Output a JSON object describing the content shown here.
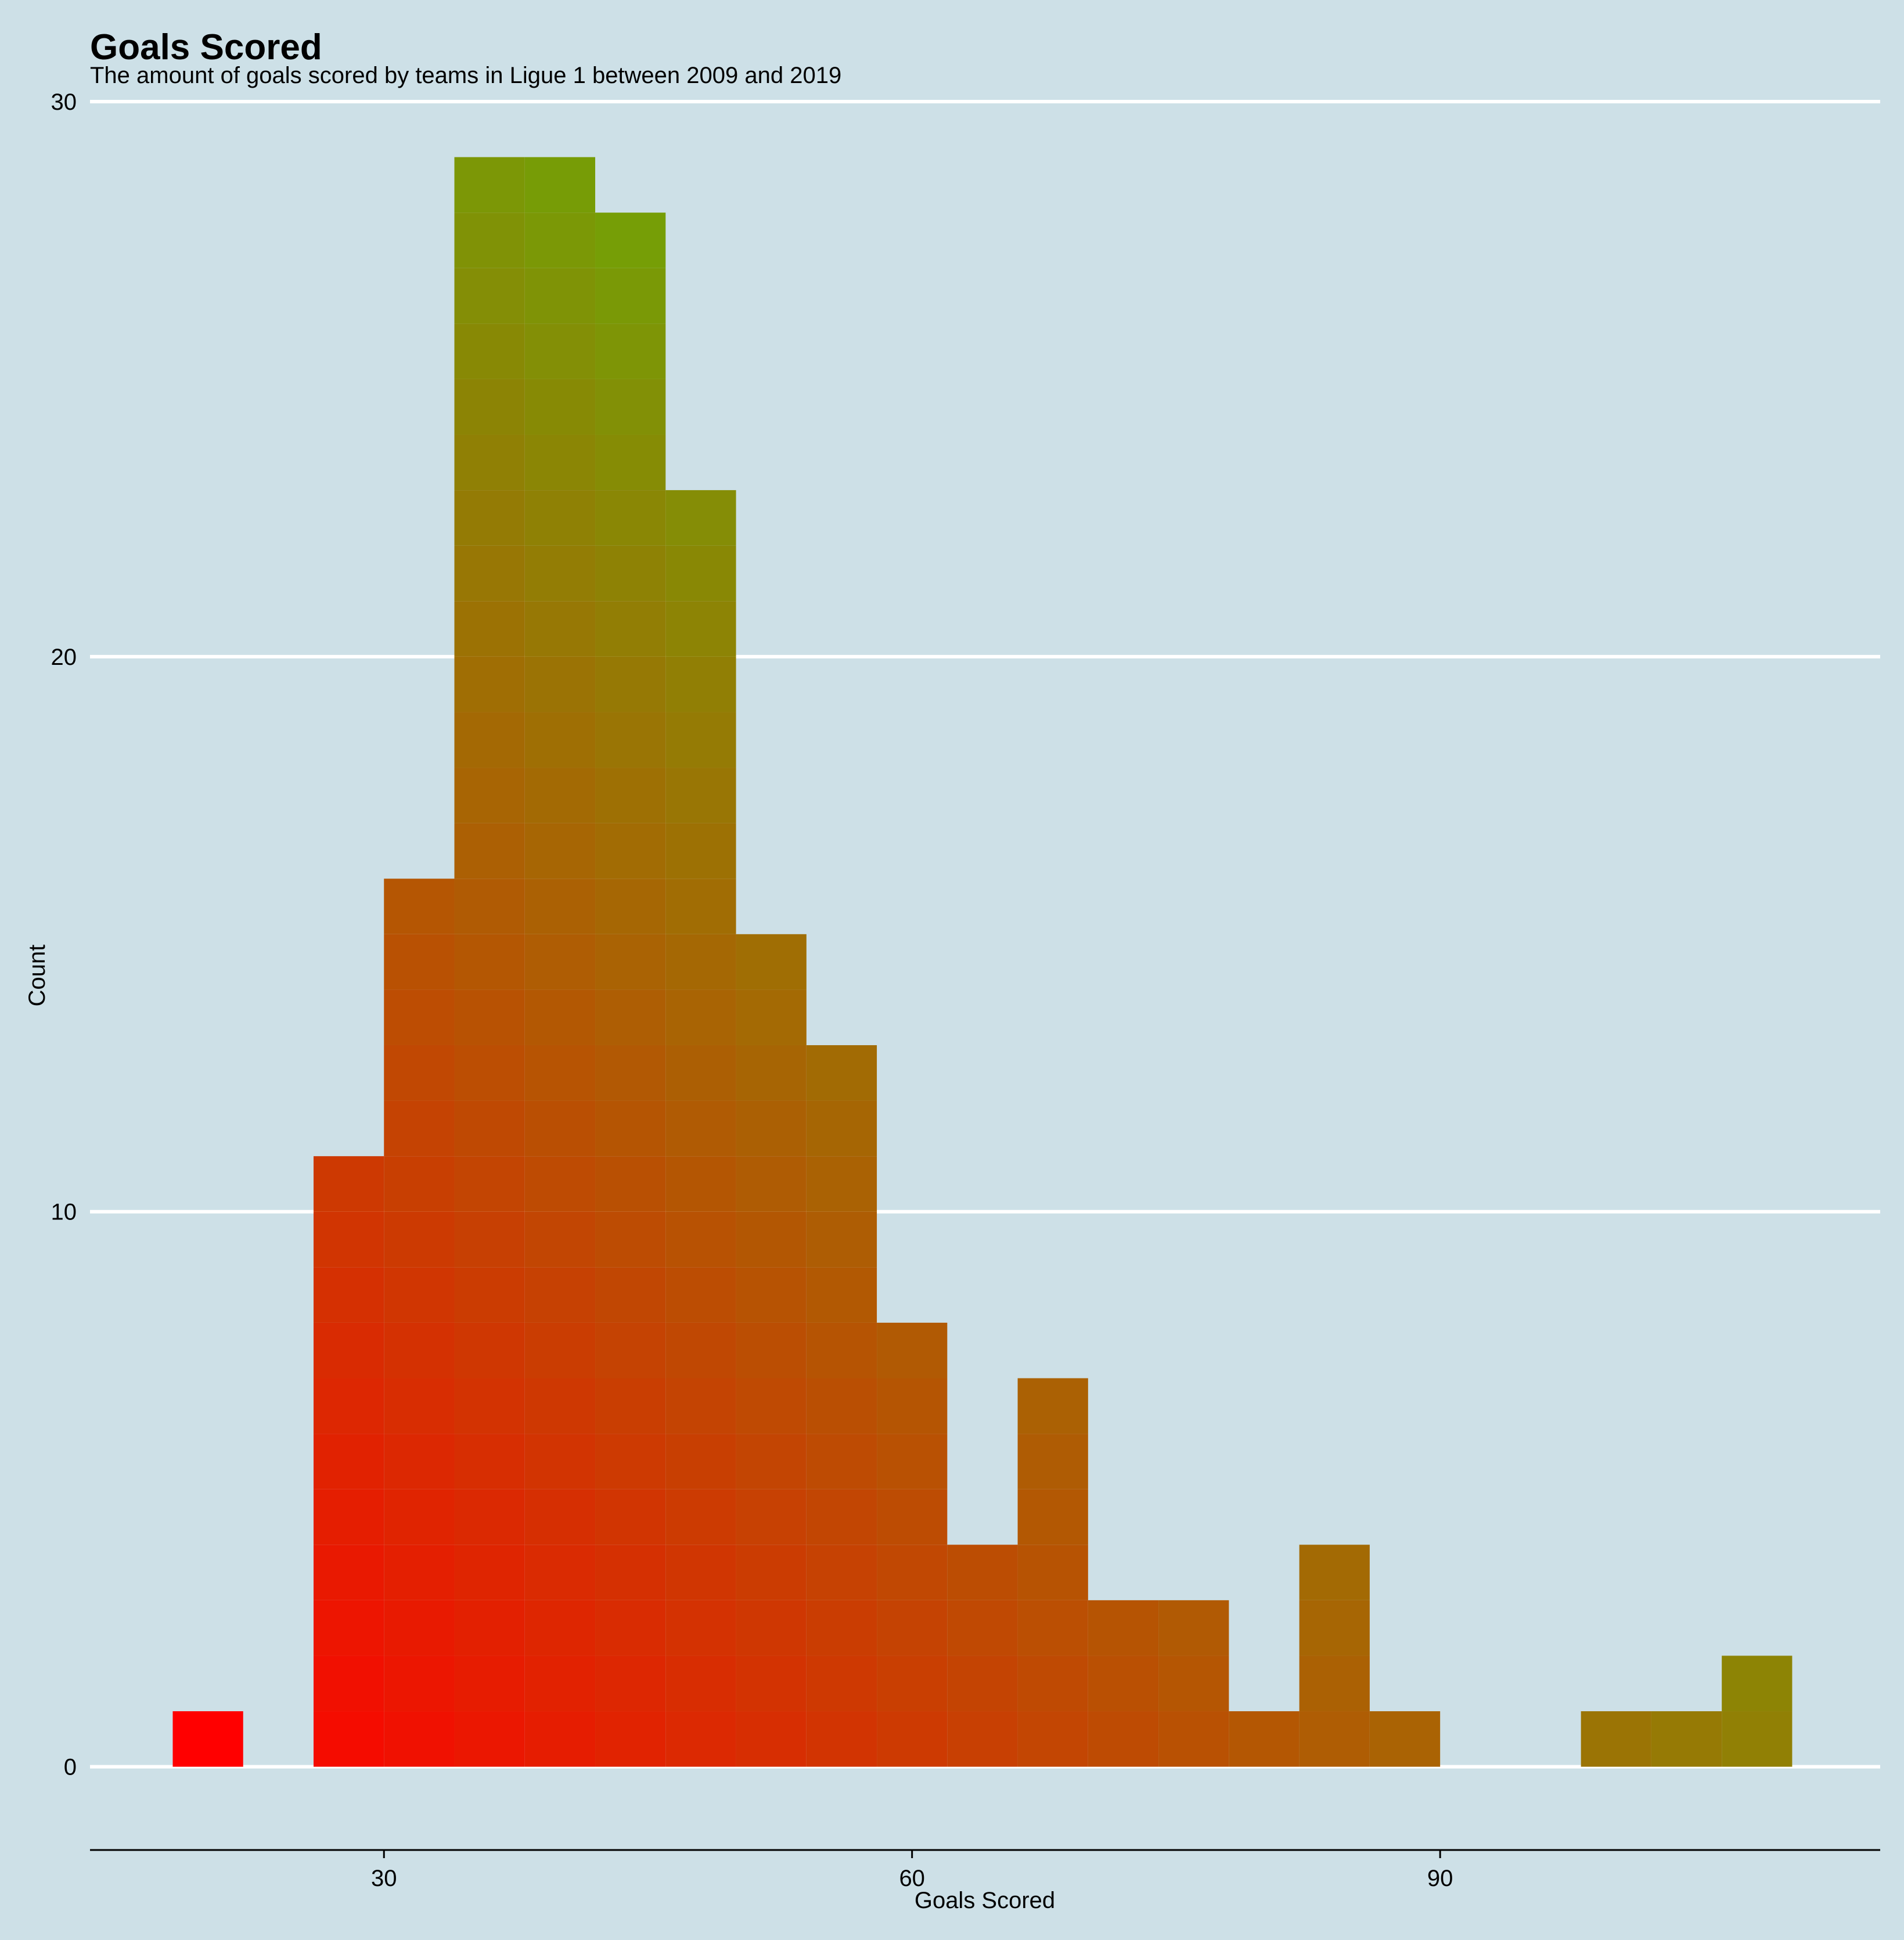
{
  "chart_data": {
    "type": "bar",
    "title": "Goals Scored",
    "subtitle": "The amount of goals scored by teams in Ligue 1 between 2009 and 2019",
    "xlabel": "Goals Scored",
    "ylabel": "Count",
    "xlim": [
      13.3,
      115
    ],
    "ylim": [
      -1.5,
      30
    ],
    "x_ticks": [
      30,
      60,
      90
    ],
    "y_ticks": [
      0,
      10,
      20,
      30
    ],
    "grid": "horizontal major lines",
    "legend": "none",
    "bin_width": 4,
    "color_scale": {
      "low": "#ff0000",
      "high": "#22ff0a"
    },
    "bins": [
      {
        "x": 20,
        "count": 1
      },
      {
        "x": 24,
        "count": 0
      },
      {
        "x": 28,
        "count": 11
      },
      {
        "x": 32,
        "count": 16
      },
      {
        "x": 36,
        "count": 29
      },
      {
        "x": 40,
        "count": 29
      },
      {
        "x": 44,
        "count": 28
      },
      {
        "x": 48,
        "count": 23
      },
      {
        "x": 52,
        "count": 15
      },
      {
        "x": 56,
        "count": 13
      },
      {
        "x": 60,
        "count": 8
      },
      {
        "x": 64,
        "count": 4
      },
      {
        "x": 68,
        "count": 7
      },
      {
        "x": 72,
        "count": 3
      },
      {
        "x": 76,
        "count": 3
      },
      {
        "x": 80,
        "count": 1
      },
      {
        "x": 84,
        "count": 4
      },
      {
        "x": 88,
        "count": 1
      },
      {
        "x": 92,
        "count": 0
      },
      {
        "x": 96,
        "count": 0
      },
      {
        "x": 100,
        "count": 1
      },
      {
        "x": 104,
        "count": 1
      },
      {
        "x": 108,
        "count": 2
      }
    ]
  }
}
